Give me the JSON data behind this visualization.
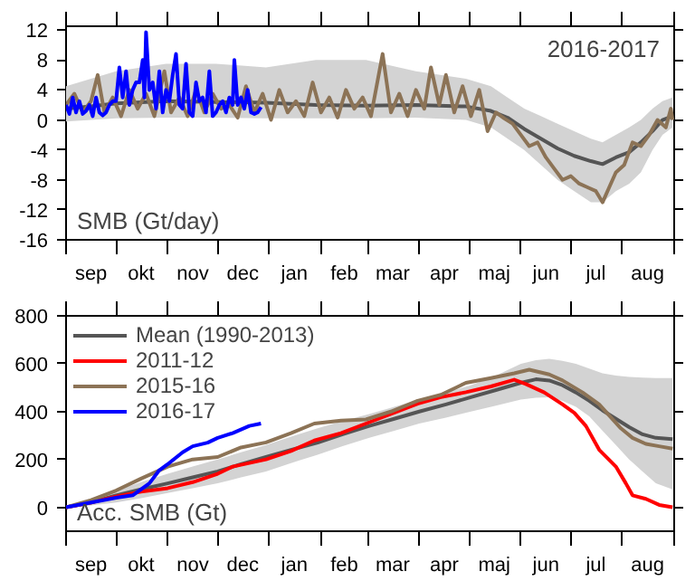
{
  "chart_data": [
    {
      "type": "line",
      "annotations": [
        "2016-2017",
        "SMB (Gt/day)"
      ],
      "legend": false,
      "grid": false,
      "xlim": [
        "2016-09-01",
        "2017-09-01"
      ],
      "xticks": [
        {
          "value": "2016-09-01",
          "label": null
        },
        {
          "value": "2016-09-16",
          "label": "sep"
        },
        {
          "value": "2016-10-01",
          "label": null
        },
        {
          "value": "2016-10-16",
          "label": "okt"
        },
        {
          "value": "2016-11-01",
          "label": null
        },
        {
          "value": "2016-11-16",
          "label": "nov"
        },
        {
          "value": "2016-12-01",
          "label": null
        },
        {
          "value": "2016-12-16",
          "label": "dec"
        },
        {
          "value": "2017-01-01",
          "label": null
        },
        {
          "value": "2017-01-16",
          "label": "jan"
        },
        {
          "value": "2017-02-01",
          "label": null
        },
        {
          "value": "2017-02-15",
          "label": "feb"
        },
        {
          "value": "2017-03-01",
          "label": null
        },
        {
          "value": "2017-03-16",
          "label": "mar"
        },
        {
          "value": "2017-04-01",
          "label": null
        },
        {
          "value": "2017-04-16",
          "label": "apr"
        },
        {
          "value": "2017-05-01",
          "label": null
        },
        {
          "value": "2017-05-16",
          "label": "maj"
        },
        {
          "value": "2017-06-01",
          "label": null
        },
        {
          "value": "2017-06-16",
          "label": "jun"
        },
        {
          "value": "2017-07-01",
          "label": null
        },
        {
          "value": "2017-07-16",
          "label": "jul"
        },
        {
          "value": "2017-08-01",
          "label": null
        },
        {
          "value": "2017-08-16",
          "label": "aug"
        },
        {
          "value": "2017-09-01",
          "label": null
        }
      ],
      "ylim": [
        -16,
        12.5
      ],
      "yticks": [
        -16,
        -12,
        -8,
        -4,
        0,
        4,
        8,
        12
      ],
      "series": [
        {
          "color": "#555555",
          "x": [
            "2016-09-01",
            "2016-09-16",
            "2016-10-01",
            "2016-10-31",
            "2016-11-30",
            "2016-12-30",
            "2017-01-29",
            "2017-02-28",
            "2017-03-30",
            "2017-04-29",
            "2017-05-14",
            "2017-05-24",
            "2017-06-03",
            "2017-06-13",
            "2017-06-23",
            "2017-07-03",
            "2017-07-13",
            "2017-07-20",
            "2017-07-28",
            "2017-08-05",
            "2017-08-12",
            "2017-08-19",
            "2017-08-25",
            "2017-08-31"
          ],
          "values": [
            1.5,
            1.8,
            2.2,
            2.5,
            2.4,
            2.3,
            2.0,
            1.9,
            2.0,
            1.8,
            1.2,
            0.3,
            -1.2,
            -2.5,
            -3.8,
            -4.8,
            -5.5,
            -5.9,
            -5.0,
            -4.3,
            -3,
            -1.5,
            0,
            0.5
          ],
          "lower": [
            -0.2,
            0,
            0.2,
            0.3,
            0.3,
            0.2,
            0.2,
            0.2,
            0.3,
            0,
            -1,
            -2.5,
            -4,
            -6,
            -8,
            -9.5,
            -11,
            -11,
            -9.5,
            -8.5,
            -7,
            -4,
            -2,
            -1
          ],
          "upper": [
            4.5,
            5.5,
            6.5,
            7.5,
            7.5,
            7,
            8,
            8,
            6.5,
            5.5,
            4.5,
            3,
            1.5,
            0.5,
            -0.5,
            -1.5,
            -2.5,
            -3,
            -2,
            -1,
            0,
            1.5,
            2.5,
            3
          ]
        },
        {
          "color": "#8c7356",
          "x": [
            "2016-09-01",
            "2016-09-06",
            "2016-09-11",
            "2016-09-16",
            "2016-09-20",
            "2016-09-24",
            "2016-09-29",
            "2016-10-04",
            "2016-10-09",
            "2016-10-14",
            "2016-10-19",
            "2016-10-24",
            "2016-10-30",
            "2016-11-03",
            "2016-11-08",
            "2016-11-13",
            "2016-11-18",
            "2016-11-23",
            "2016-11-28",
            "2016-12-03",
            "2016-12-08",
            "2016-12-13",
            "2016-12-18",
            "2016-12-23",
            "2016-12-28",
            "2017-01-02",
            "2017-01-07",
            "2017-01-12",
            "2017-01-17",
            "2017-01-22",
            "2017-01-27",
            "2017-02-01",
            "2017-02-06",
            "2017-02-11",
            "2017-02-16",
            "2017-02-21",
            "2017-02-26",
            "2017-03-03",
            "2017-03-10",
            "2017-03-15",
            "2017-03-20",
            "2017-03-25",
            "2017-03-30",
            "2017-04-04",
            "2017-04-08",
            "2017-04-13",
            "2017-04-17",
            "2017-04-22",
            "2017-04-27",
            "2017-05-02",
            "2017-05-07",
            "2017-05-12",
            "2017-05-17",
            "2017-05-22",
            "2017-05-27",
            "2017-06-01",
            "2017-06-06",
            "2017-06-11",
            "2017-06-16",
            "2017-06-21",
            "2017-06-26",
            "2017-07-01",
            "2017-07-06",
            "2017-07-11",
            "2017-07-16",
            "2017-07-20",
            "2017-07-24",
            "2017-07-28",
            "2017-08-02",
            "2017-08-07",
            "2017-08-12",
            "2017-08-17",
            "2017-08-22",
            "2017-08-27",
            "2017-08-30",
            "2017-08-31"
          ],
          "values": [
            2,
            3.5,
            1,
            2.5,
            6,
            1,
            3,
            0.5,
            4,
            1.5,
            3.5,
            0.5,
            6.5,
            1,
            3,
            0.5,
            4,
            1,
            3.5,
            1.5,
            2,
            0.3,
            4.5,
            1,
            3.5,
            0,
            4,
            1,
            2.5,
            0.5,
            5,
            1,
            3,
            0.3,
            4,
            1.5,
            3,
            0.5,
            8.8,
            1,
            3.5,
            0.5,
            4,
            1.5,
            7,
            2,
            6,
            1,
            4.5,
            0.5,
            4,
            -1.5,
            1,
            0.2,
            -0.5,
            -2,
            -3.5,
            -3,
            -5,
            -6.5,
            -8,
            -7.5,
            -8.5,
            -9,
            -9.5,
            -11,
            -9,
            -7,
            -6,
            -3,
            -3.5,
            -2,
            0,
            -1,
            1.5,
            0
          ]
        },
        {
          "color": "#0000ff",
          "x": [
            "2016-09-01",
            "2016-09-03",
            "2016-09-05",
            "2016-09-07",
            "2016-09-09",
            "2016-09-11",
            "2016-09-13",
            "2016-09-15",
            "2016-09-17",
            "2016-09-19",
            "2016-09-21",
            "2016-09-23",
            "2016-09-25",
            "2016-09-27",
            "2016-09-29",
            "2016-10-01",
            "2016-10-03",
            "2016-10-05",
            "2016-10-07",
            "2016-10-09",
            "2016-10-11",
            "2016-10-13",
            "2016-10-15",
            "2016-10-17",
            "2016-10-18",
            "2016-10-19",
            "2016-10-21",
            "2016-10-23",
            "2016-10-25",
            "2016-10-27",
            "2016-10-29",
            "2016-10-31",
            "2016-11-02",
            "2016-11-04",
            "2016-11-06",
            "2016-11-08",
            "2016-11-10",
            "2016-11-12",
            "2016-11-14",
            "2016-11-16",
            "2016-11-18",
            "2016-11-20",
            "2016-11-22",
            "2016-11-24",
            "2016-11-26",
            "2016-11-28",
            "2016-11-30",
            "2016-12-02",
            "2016-12-04",
            "2016-12-06",
            "2016-12-08",
            "2016-12-10",
            "2016-12-11",
            "2016-12-13",
            "2016-12-15",
            "2016-12-17",
            "2016-12-19",
            "2016-12-21",
            "2016-12-23",
            "2016-12-25",
            "2016-12-27"
          ],
          "values": [
            2,
            0.8,
            3,
            1,
            2.5,
            0.8,
            1.2,
            2,
            0.5,
            3,
            1,
            0.6,
            1,
            2,
            2.5,
            2.5,
            7,
            3,
            6.5,
            2,
            4,
            5,
            5,
            8,
            3,
            11.7,
            4,
            5,
            1.5,
            6.5,
            1,
            4,
            2.5,
            6,
            8.8,
            2,
            1.5,
            7.5,
            1,
            0.5,
            5,
            2.5,
            3,
            1,
            6.5,
            0.5,
            1,
            2,
            2.5,
            1,
            3,
            2,
            8,
            2,
            3,
            1.5,
            4,
            1,
            0.8,
            1,
            1.7
          ]
        }
      ]
    },
    {
      "type": "line",
      "annotations": [
        "Acc. SMB (Gt)"
      ],
      "legend": "top left",
      "grid": false,
      "xlim": [
        "2016-09-01",
        "2017-09-01"
      ],
      "xticks": [
        {
          "value": "2016-09-01",
          "label": null
        },
        {
          "value": "2016-09-16",
          "label": "sep"
        },
        {
          "value": "2016-10-01",
          "label": null
        },
        {
          "value": "2016-10-16",
          "label": "okt"
        },
        {
          "value": "2016-11-01",
          "label": null
        },
        {
          "value": "2016-11-16",
          "label": "nov"
        },
        {
          "value": "2016-12-01",
          "label": null
        },
        {
          "value": "2016-12-16",
          "label": "dec"
        },
        {
          "value": "2017-01-01",
          "label": null
        },
        {
          "value": "2017-01-16",
          "label": "jan"
        },
        {
          "value": "2017-02-01",
          "label": null
        },
        {
          "value": "2017-02-15",
          "label": "feb"
        },
        {
          "value": "2017-03-01",
          "label": null
        },
        {
          "value": "2017-03-16",
          "label": "mar"
        },
        {
          "value": "2017-04-01",
          "label": null
        },
        {
          "value": "2017-04-16",
          "label": "apr"
        },
        {
          "value": "2017-05-01",
          "label": null
        },
        {
          "value": "2017-05-16",
          "label": "maj"
        },
        {
          "value": "2017-06-01",
          "label": null
        },
        {
          "value": "2017-06-16",
          "label": "jun"
        },
        {
          "value": "2017-07-01",
          "label": null
        },
        {
          "value": "2017-07-16",
          "label": "jul"
        },
        {
          "value": "2017-08-01",
          "label": null
        },
        {
          "value": "2017-08-16",
          "label": "aug"
        },
        {
          "value": "2017-09-01",
          "label": null
        }
      ],
      "ylim": [
        -100,
        800
      ],
      "yticks": [
        0,
        200,
        400,
        600,
        800
      ],
      "series": [
        {
          "name": "Mean (1990-2013)",
          "color": "#555555",
          "x": [
            "2016-09-01",
            "2016-09-16",
            "2016-10-01",
            "2016-10-16",
            "2016-11-01",
            "2016-11-16",
            "2016-12-01",
            "2016-12-15",
            "2016-12-30",
            "2017-01-14",
            "2017-01-30",
            "2017-02-14",
            "2017-03-02",
            "2017-03-17",
            "2017-04-01",
            "2017-04-17",
            "2017-05-02",
            "2017-05-17",
            "2017-06-01",
            "2017-06-10",
            "2017-06-18",
            "2017-06-26",
            "2017-07-04",
            "2017-07-12",
            "2017-07-20",
            "2017-07-28",
            "2017-08-05",
            "2017-08-13",
            "2017-08-21",
            "2017-08-31"
          ],
          "values": [
            0,
            20,
            50,
            75,
            100,
            125,
            150,
            180,
            210,
            240,
            270,
            305,
            340,
            370,
            400,
            430,
            460,
            490,
            520,
            535,
            530,
            510,
            480,
            445,
            405,
            370,
            335,
            305,
            290,
            285
          ],
          "lower": [
            0,
            8,
            20,
            38,
            60,
            80,
            100,
            125,
            150,
            185,
            220,
            255,
            290,
            320,
            350,
            375,
            400,
            425,
            450,
            458,
            460,
            445,
            420,
            380,
            320,
            260,
            200,
            150,
            100,
            75
          ],
          "upper": [
            0,
            35,
            70,
            105,
            140,
            170,
            200,
            230,
            260,
            295,
            330,
            360,
            390,
            420,
            450,
            480,
            510,
            550,
            600,
            615,
            620,
            612,
            600,
            580,
            560,
            550,
            545,
            542,
            540,
            540
          ]
        },
        {
          "name": "2011-12",
          "color": "#ff0000",
          "x": [
            "2016-09-01",
            "2016-09-16",
            "2016-10-01",
            "2016-10-16",
            "2016-11-01",
            "2016-11-16",
            "2016-12-01",
            "2016-12-10",
            "2016-12-20",
            "2016-12-30",
            "2017-01-14",
            "2017-01-28",
            "2017-02-13",
            "2017-02-28",
            "2017-03-15",
            "2017-03-31",
            "2017-04-14",
            "2017-04-29",
            "2017-05-14",
            "2017-05-28",
            "2017-06-04",
            "2017-06-15",
            "2017-06-26",
            "2017-07-03",
            "2017-07-10",
            "2017-07-18",
            "2017-07-28",
            "2017-08-03",
            "2017-08-07",
            "2017-08-15",
            "2017-08-23",
            "2017-08-31"
          ],
          "values": [
            0,
            20,
            45,
            65,
            80,
            105,
            140,
            170,
            185,
            200,
            235,
            279,
            310,
            350,
            390,
            433,
            460,
            481,
            505,
            533,
            515,
            480,
            430,
            395,
            340,
            240,
            170,
            100,
            50,
            35,
            10,
            0
          ]
        },
        {
          "name": "2015-16",
          "color": "#8c7356",
          "x": [
            "2016-09-01",
            "2016-09-16",
            "2016-10-01",
            "2016-10-16",
            "2016-11-01",
            "2016-11-16",
            "2016-12-01",
            "2016-12-15",
            "2016-12-30",
            "2017-01-14",
            "2017-01-28",
            "2017-02-13",
            "2017-02-28",
            "2017-03-15",
            "2017-03-31",
            "2017-04-14",
            "2017-04-29",
            "2017-05-14",
            "2017-05-28",
            "2017-06-06",
            "2017-06-18",
            "2017-06-26",
            "2017-07-08",
            "2017-07-18",
            "2017-07-31",
            "2017-08-07",
            "2017-08-15",
            "2017-08-23",
            "2017-08-31"
          ],
          "values": [
            0,
            30,
            70,
            120,
            170,
            200,
            210,
            250,
            271,
            310,
            350,
            362,
            367,
            400,
            445,
            470,
            520,
            540,
            560,
            575,
            555,
            530,
            480,
            430,
            330,
            290,
            265,
            255,
            245
          ]
        },
        {
          "name": "2016-17",
          "color": "#0000ff",
          "x": [
            "2016-09-01",
            "2016-09-16",
            "2016-10-01",
            "2016-10-11",
            "2016-10-21",
            "2016-10-27",
            "2016-11-01",
            "2016-11-10",
            "2016-11-16",
            "2016-11-25",
            "2016-12-01",
            "2016-12-10",
            "2016-12-20",
            "2016-12-27"
          ],
          "values": [
            0,
            20,
            40,
            50,
            100,
            155,
            180,
            230,
            255,
            270,
            290,
            310,
            340,
            350
          ]
        }
      ]
    }
  ]
}
